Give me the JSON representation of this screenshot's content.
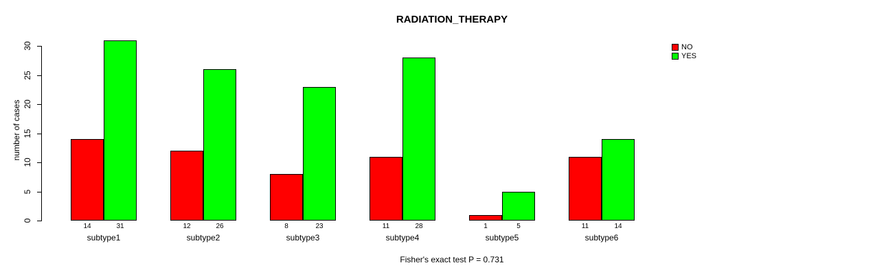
{
  "title": "RADIATION_THERAPY",
  "footer": "Fisher's exact test P = 0.731",
  "y_axis": {
    "label": "number of cases",
    "ticks": [
      0,
      5,
      10,
      15,
      20,
      25,
      30
    ]
  },
  "legend": {
    "items": [
      {
        "label": "NO",
        "color": "#ff0000"
      },
      {
        "label": "YES",
        "color": "#00ff00"
      }
    ]
  },
  "chart_data": {
    "type": "bar",
    "title": "RADIATION_THERAPY",
    "xlabel": "",
    "ylabel": "number of cases",
    "categories": [
      "subtype1",
      "subtype2",
      "subtype3",
      "subtype4",
      "subtype5",
      "subtype6"
    ],
    "series": [
      {
        "name": "NO",
        "color": "#ff0000",
        "values": [
          14,
          12,
          8,
          11,
          1,
          11
        ]
      },
      {
        "name": "YES",
        "color": "#00ff00",
        "values": [
          31,
          26,
          23,
          28,
          5,
          14
        ]
      }
    ],
    "ylim": [
      0,
      30
    ],
    "yticks": [
      0,
      5,
      10,
      15,
      20,
      25,
      30
    ],
    "bar_value_labels": true,
    "grid": false,
    "legend_position": "top-right",
    "annotation": "Fisher's exact test P = 0.731"
  }
}
